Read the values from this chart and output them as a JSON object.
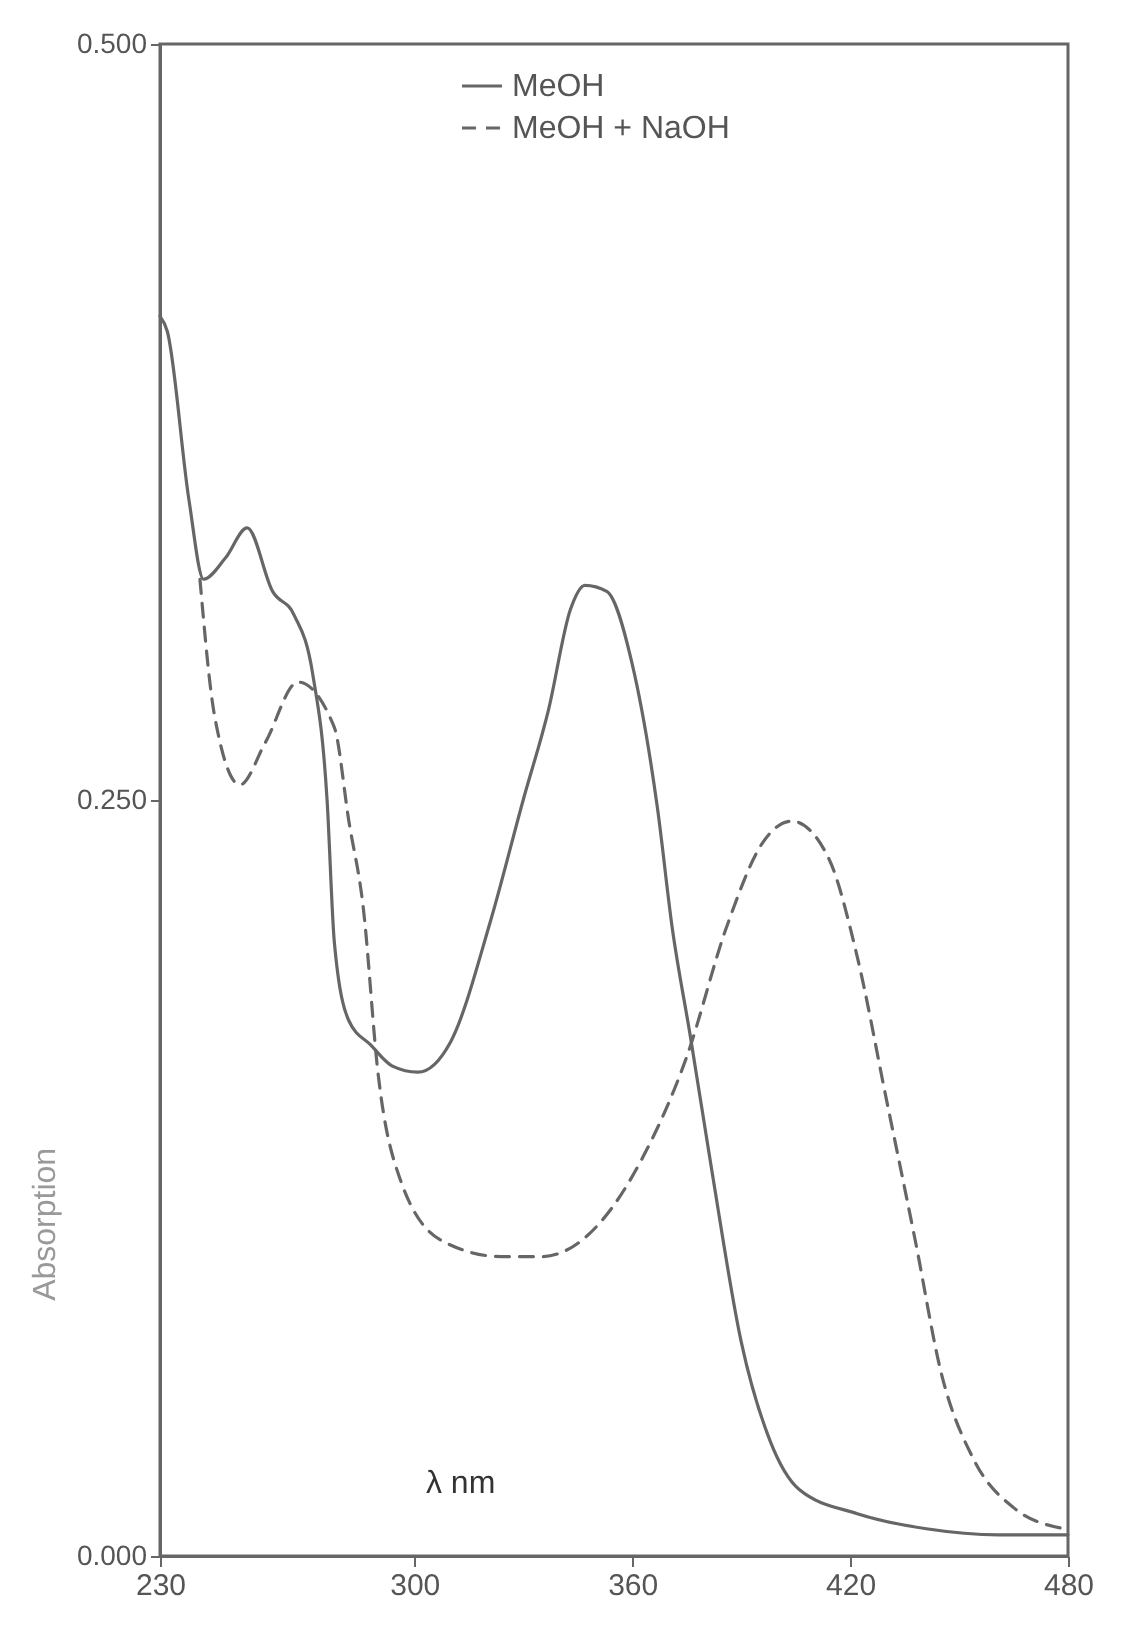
{
  "chart_data": {
    "type": "line",
    "xlabel": "λ nm",
    "ylabel": "Absorption",
    "xlim": [
      230,
      480
    ],
    "ylim": [
      0,
      0.5
    ],
    "xticks": [
      230,
      300,
      360,
      420,
      480
    ],
    "yticks": [
      {
        "value": 0,
        "label": "0.000"
      },
      {
        "value": 0.25,
        "label": "0.250"
      },
      {
        "value": 0.5,
        "label": "0.500"
      }
    ],
    "grid": false,
    "legend": "top",
    "marker": "none",
    "series": [
      {
        "name": "MeOH",
        "color": "#666666",
        "line_style": "solid",
        "x": [
          230,
          232,
          238,
          242,
          248,
          254,
          261,
          267,
          272,
          276,
          278,
          282,
          288,
          294,
          301,
          310,
          321,
          330,
          337,
          343,
          347,
          353,
          360,
          367,
          371,
          376,
          382,
          390,
          398,
          406,
          422,
          441,
          461,
          480
        ],
        "values": [
          0.41,
          0.405,
          0.349,
          0.323,
          0.33,
          0.34,
          0.319,
          0.311,
          0.292,
          0.25,
          0.203,
          0.177,
          0.169,
          0.162,
          0.16,
          0.17,
          0.21,
          0.25,
          0.28,
          0.313,
          0.321,
          0.319,
          0.295,
          0.247,
          0.208,
          0.172,
          0.127,
          0.071,
          0.038,
          0.022,
          0.014,
          0.009,
          0.007,
          0.007
        ]
      },
      {
        "name": "MeOH + NaOH",
        "color": "#666666",
        "line_style": "dashed",
        "x": [
          241,
          245,
          252,
          259,
          268,
          278,
          282,
          286,
          290,
          296,
          308,
          324,
          335,
          351,
          363,
          375,
          386,
          396,
          404,
          414,
          422,
          430,
          438,
          445,
          454,
          465,
          479
        ],
        "values": [
          0.323,
          0.278,
          0.255,
          0.269,
          0.289,
          0.274,
          0.243,
          0.214,
          0.16,
          0.125,
          0.104,
          0.099,
          0.099,
          0.11,
          0.132,
          0.165,
          0.208,
          0.236,
          0.243,
          0.231,
          0.198,
          0.151,
          0.104,
          0.061,
          0.032,
          0.016,
          0.009
        ]
      }
    ]
  }
}
